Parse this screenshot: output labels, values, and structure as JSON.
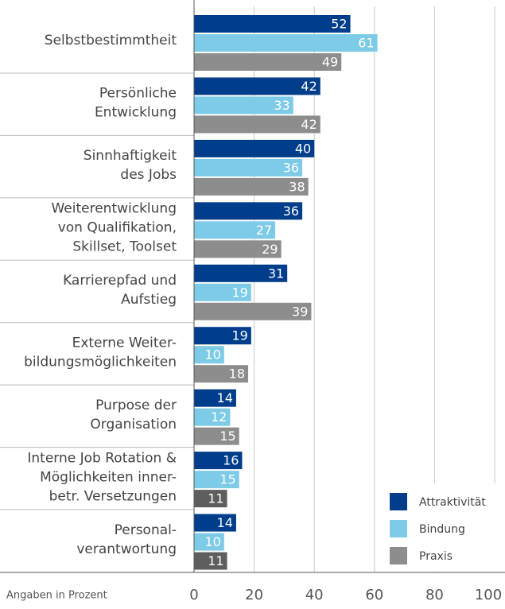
{
  "chart_data": {
    "type": "bar",
    "orientation": "horizontal",
    "categories": [
      [
        "Selbstbestimmtheit"
      ],
      [
        "Persönliche",
        "Entwicklung"
      ],
      [
        "Sinnhaftigkeit",
        "des Jobs"
      ],
      [
        "Weiterentwicklung",
        "von Qualifikation,",
        "Skillset, Toolset"
      ],
      [
        "Karrierepfad und",
        "Aufstieg"
      ],
      [
        "Externe Weiter-",
        "bildungsmöglichkeiten"
      ],
      [
        "Purpose der",
        "Organisation"
      ],
      [
        "Interne Job Rotation &",
        "Möglichkeiten inner-",
        "betr. Versetzungen"
      ],
      [
        "Personal-",
        "verantwortung"
      ]
    ],
    "series": [
      {
        "name": "Attraktivität",
        "color": "#003d8a",
        "values": [
          52,
          42,
          40,
          36,
          31,
          19,
          14,
          16,
          14
        ]
      },
      {
        "name": "Bindung",
        "color": "#7dcbe6",
        "values": [
          61,
          33,
          36,
          27,
          19,
          10,
          12,
          15,
          10
        ]
      },
      {
        "name": "Praxis",
        "color": "#8d8d8d",
        "colors": [
          "#8d8d8d",
          "#8d8d8d",
          "#8d8d8d",
          "#8d8d8d",
          "#8d8d8d",
          "#8d8d8d",
          "#8d8d8d",
          "#5e5e5e",
          "#5e5e5e"
        ],
        "values": [
          49,
          42,
          38,
          29,
          39,
          18,
          15,
          11,
          11
        ]
      }
    ],
    "xlim": [
      0,
      100
    ],
    "xticks": [
      0,
      20,
      40,
      60,
      80,
      100
    ],
    "grid": true,
    "legend": "lower right",
    "note": "Angaben in Prozent"
  }
}
